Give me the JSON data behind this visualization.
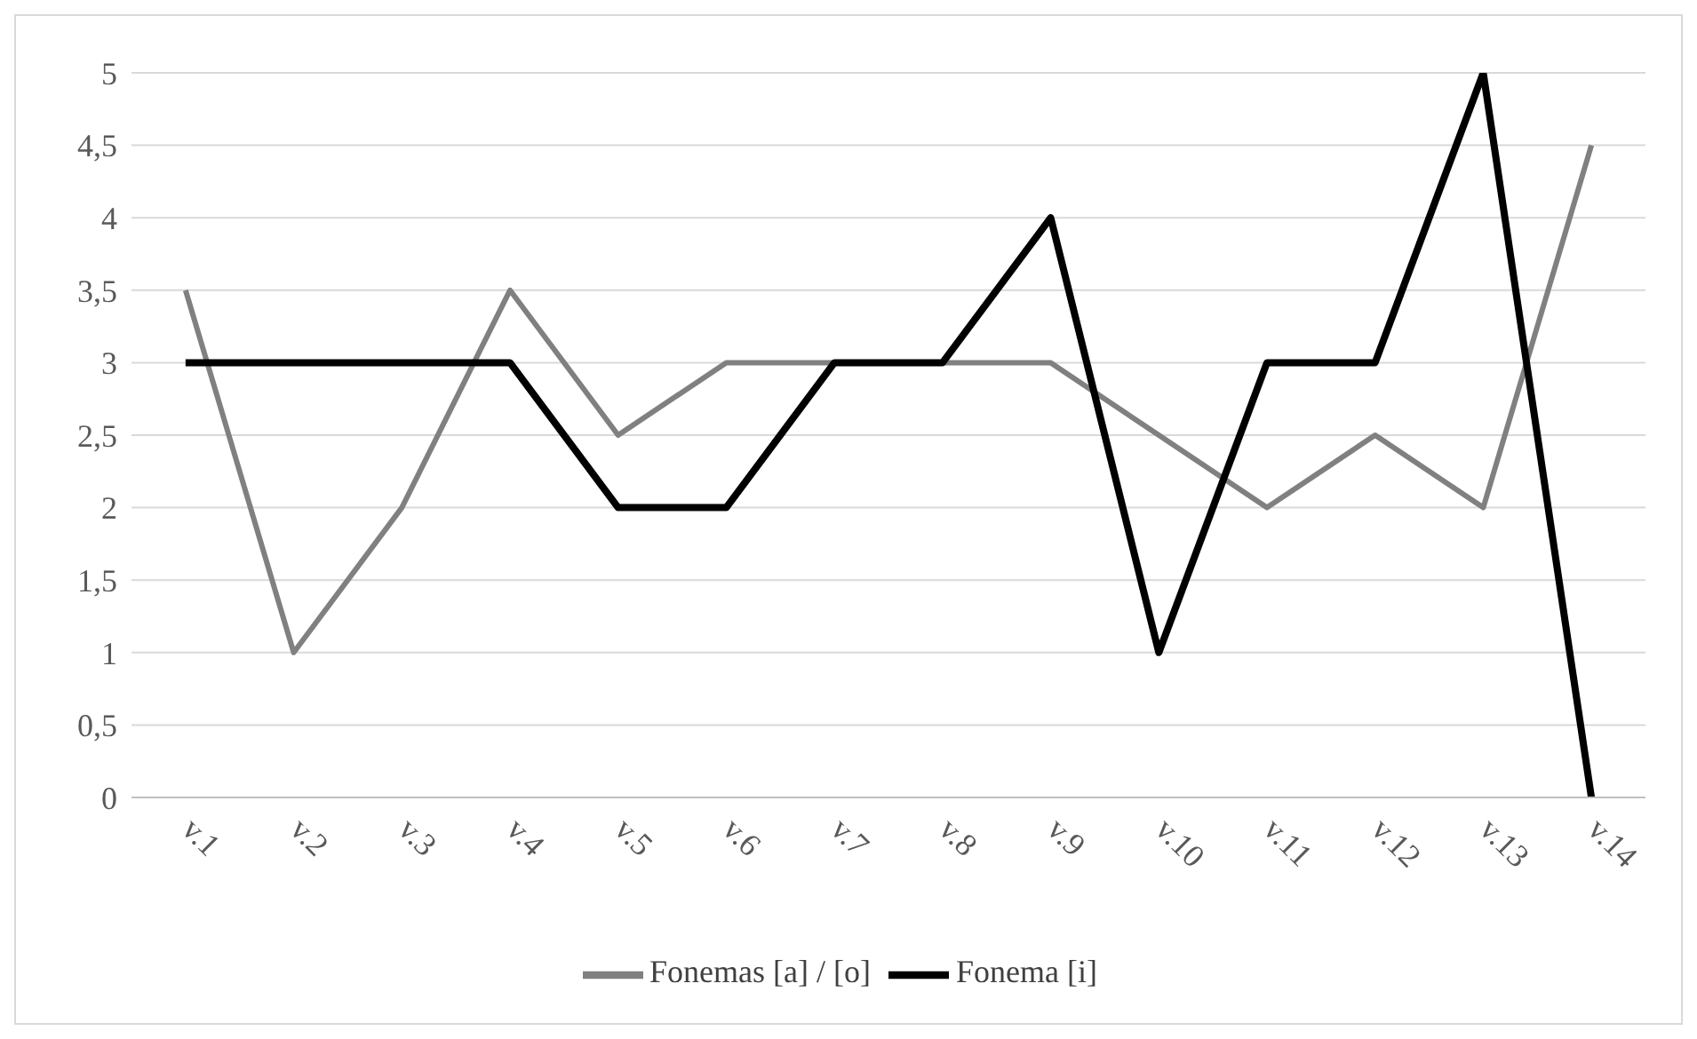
{
  "chart_data": {
    "type": "line",
    "categories": [
      "v.1",
      "v.2",
      "v.3",
      "v.4",
      "v.5",
      "v.6",
      "v.7",
      "v.8",
      "v.9",
      "v.10",
      "v.11",
      "v.12",
      "v.13",
      "v.14"
    ],
    "series": [
      {
        "name": "Fonemas  [a] / [o]",
        "color": "#808080",
        "values": [
          3.5,
          1,
          2,
          3.5,
          2.5,
          3,
          3,
          3,
          3,
          2.5,
          2,
          2.5,
          2,
          4.5
        ]
      },
      {
        "name": "Fonema  [i]",
        "color": "#000000",
        "values": [
          3,
          3,
          3,
          3,
          2,
          2,
          3,
          3,
          4,
          1,
          3,
          3,
          5,
          0
        ]
      }
    ],
    "ylim": [
      0,
      5
    ],
    "yticks": [
      0,
      {
        "value": 0.5,
        "label": "0,5"
      },
      1,
      {
        "value": 1.5,
        "label": "1,5"
      },
      2,
      {
        "value": 2.5,
        "label": "2,5"
      },
      3,
      {
        "value": 3.5,
        "label": "3,5"
      },
      4,
      {
        "value": 4.5,
        "label": "4,5"
      },
      5
    ],
    "grid": "y",
    "legend": "bottom",
    "marker": "none",
    "line_style": "solid"
  }
}
